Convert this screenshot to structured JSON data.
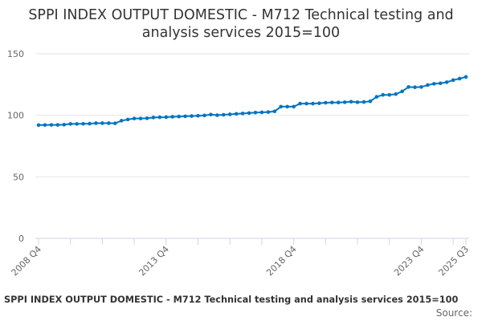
{
  "chart_data": {
    "type": "line",
    "title": "SPPI INDEX OUTPUT DOMESTIC - M712 Technical testing and analysis services 2015=100",
    "xlabel": "",
    "ylabel": "",
    "ylim": [
      0,
      150
    ],
    "yticks": [
      "0",
      "50",
      "100",
      "150"
    ],
    "grid": true,
    "legend": "none",
    "x_start": "2008 Q4",
    "x_end": "2025 Q3",
    "xtick_labels": [
      {
        "index": 0,
        "label": "2008 Q4"
      },
      {
        "index": 20,
        "label": "2013 Q4"
      },
      {
        "index": 40,
        "label": "2018 Q4"
      },
      {
        "index": 60,
        "label": "2023 Q4"
      },
      {
        "index": 67,
        "label": "2025 Q3"
      }
    ],
    "color": "#0075c2",
    "values": [
      92.0,
      92.1,
      92.2,
      92.2,
      92.4,
      93.0,
      93.0,
      93.1,
      93.2,
      93.6,
      93.6,
      93.6,
      93.5,
      95.6,
      96.6,
      97.4,
      97.4,
      97.6,
      98.2,
      98.4,
      98.5,
      98.8,
      99.0,
      99.2,
      99.4,
      99.6,
      99.9,
      100.6,
      100.1,
      100.4,
      100.8,
      101.2,
      101.5,
      101.8,
      102.2,
      102.4,
      102.6,
      103.2,
      107.0,
      107.0,
      107.0,
      109.5,
      109.5,
      109.5,
      109.8,
      110.2,
      110.4,
      110.4,
      110.6,
      111.0,
      110.6,
      110.8,
      111.4,
      115.0,
      116.6,
      116.6,
      117.2,
      119.4,
      123.0,
      122.8,
      123.0,
      124.6,
      125.6,
      126.0,
      126.9,
      128.6,
      129.8,
      131.2
    ]
  },
  "footer": {
    "title": "SPPI INDEX OUTPUT DOMESTIC - M712 Technical testing and analysis services 2015=100",
    "source": "Source:"
  }
}
